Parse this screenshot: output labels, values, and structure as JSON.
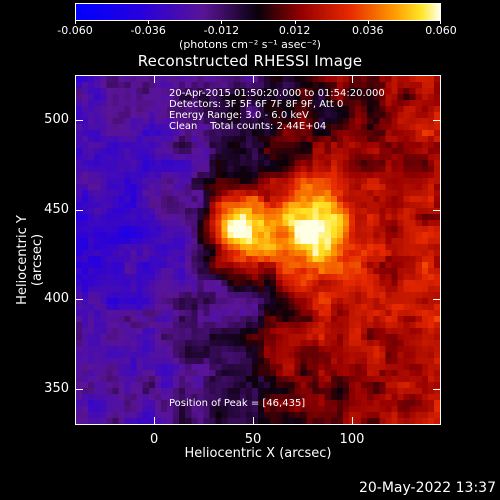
{
  "colorbar": {
    "tick_labels": [
      "-0.060",
      "-0.036",
      "-0.012",
      "0.012",
      "0.036",
      "0.060"
    ],
    "units": "(photons cm⁻² s⁻¹ asec⁻²)",
    "min": -0.06,
    "max": 0.06
  },
  "image": {
    "title": "Reconstructed RHESSI Image",
    "time_range": "20-Apr-2015 01:50:20.000 to 01:54:20.000",
    "detectors": "Detectors: 3F 5F 6F 7F 8F 9F, Att 0",
    "energy_range": "Energy Range: 3.0 - 6.0 keV",
    "algorithm_counts": "Clean    Total counts: 2.44E+04",
    "peak_position": "Position of Peak = [46,435]",
    "peak_x": 46,
    "peak_y": 435
  },
  "axes": {
    "xlabel": "Heliocentric X (arcsec)",
    "ylabel": "Heliocentric Y (arcsec)",
    "xlim": [
      -40,
      145
    ],
    "ylim": [
      330,
      525
    ],
    "xticks": [
      "0",
      "50",
      "100"
    ],
    "yticks": [
      "350",
      "400",
      "450",
      "500"
    ]
  },
  "footer": {
    "timestamp": "20-May-2022 13:37"
  }
}
